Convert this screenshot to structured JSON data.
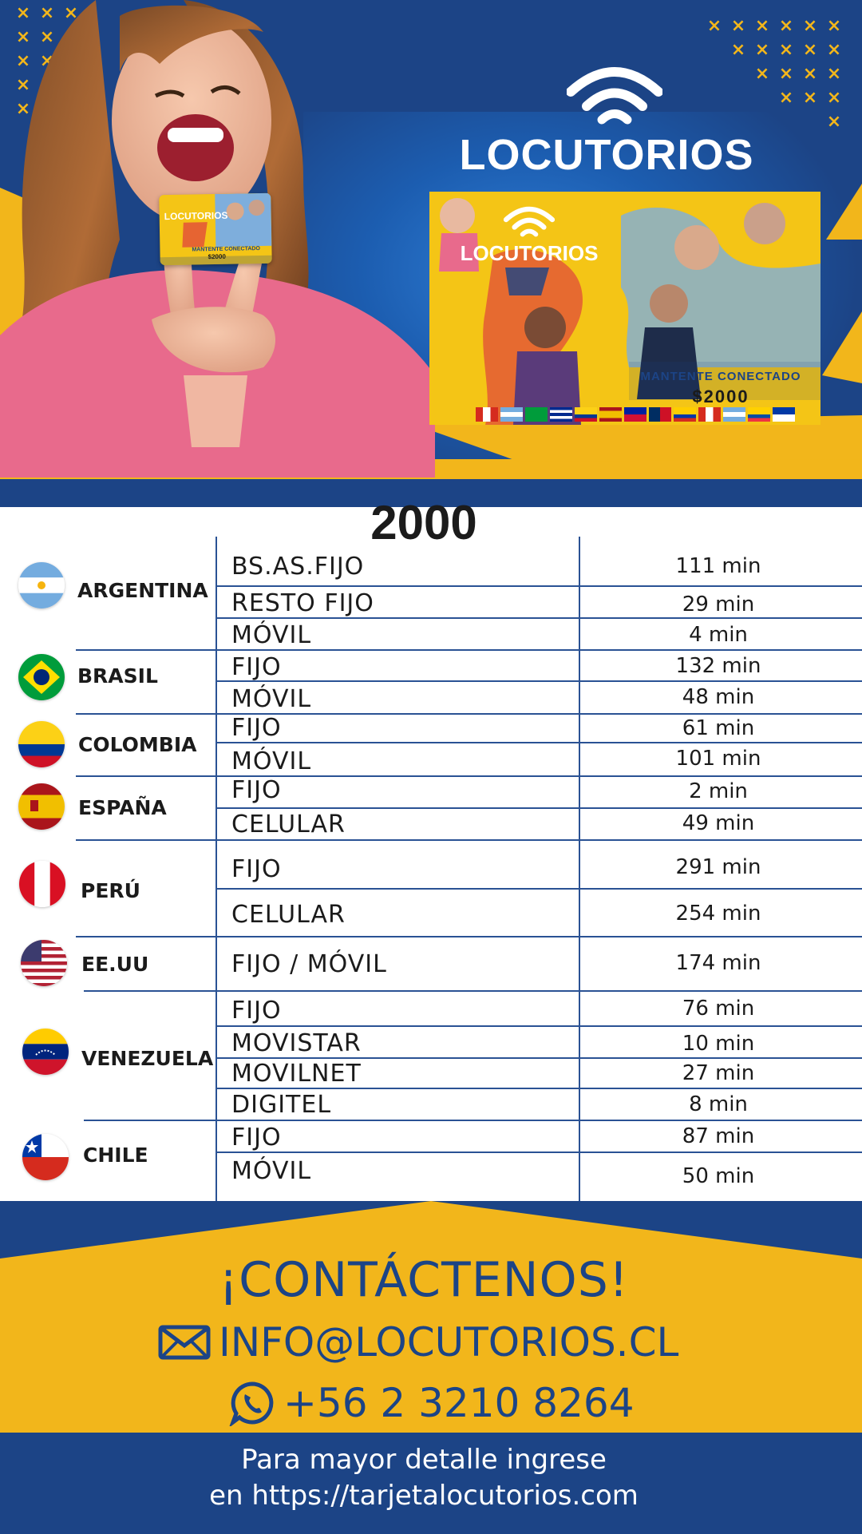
{
  "brand": {
    "name": "LOCUTORIOS"
  },
  "promo_card": {
    "brand": "LOCUTORIOS",
    "tagline": "MANTENTE CONECTADO",
    "price": "$2000"
  },
  "mini_card": {
    "brand": "LOCUTORIOS",
    "tagline": "MANTENTE CONECTADO",
    "price": "$2000"
  },
  "table": {
    "title": "2000",
    "countries": [
      {
        "name": "ARGENTINA",
        "flag": "argentina-flag",
        "rates": [
          {
            "label": "BS.AS.FIJO",
            "minutes": "111 min"
          },
          {
            "label": "RESTO FIJO",
            "minutes": "29 min"
          },
          {
            "label": "MÓVIL",
            "minutes": "4 min"
          }
        ]
      },
      {
        "name": "BRASIL",
        "flag": "brazil-flag",
        "rates": [
          {
            "label": "FIJO",
            "minutes": "132 min"
          },
          {
            "label": "MÓVIL",
            "minutes": "48 min"
          }
        ]
      },
      {
        "name": "COLOMBIA",
        "flag": "colombia-flag",
        "rates": [
          {
            "label": "FIJO",
            "minutes": "61 min"
          },
          {
            "label": "MÓVIL",
            "minutes": "101 min"
          }
        ]
      },
      {
        "name": "ESPAÑA",
        "flag": "spain-flag",
        "rates": [
          {
            "label": "FIJO",
            "minutes": "2 min"
          },
          {
            "label": "CELULAR",
            "minutes": "49 min"
          }
        ]
      },
      {
        "name": "PERÚ",
        "flag": "peru-flag",
        "rates": [
          {
            "label": "FIJO",
            "minutes": "291 min"
          },
          {
            "label": "CELULAR",
            "minutes": "254 min"
          }
        ]
      },
      {
        "name": "EE.UU",
        "flag": "usa-flag",
        "rates": [
          {
            "label": "FIJO / MÓVIL",
            "minutes": "174 min"
          }
        ]
      },
      {
        "name": "VENEZUELA",
        "flag": "venezuela-flag",
        "rates": [
          {
            "label": "FIJO",
            "minutes": "76 min"
          },
          {
            "label": "MOVISTAR",
            "minutes": "10 min"
          },
          {
            "label": "MOVILNET",
            "minutes": "27 min"
          },
          {
            "label": "DIGITEL",
            "minutes": "8 min"
          }
        ]
      },
      {
        "name": "CHILE",
        "flag": "chile-flag",
        "rates": [
          {
            "label": "FIJO",
            "minutes": "87 min"
          },
          {
            "label": "MÓVIL",
            "minutes": "50 min"
          }
        ]
      }
    ]
  },
  "contact": {
    "title": "¡CONTÁCTENOS!",
    "email": "INFO@LOCUTORIOS.CL",
    "phone": "+56 2 3210 8264",
    "email_icon": "mail-icon",
    "phone_icon": "whatsapp-icon"
  },
  "footer_note": {
    "line1": "Para mayor detalle ingrese",
    "line2": "en https://tarjetalocutorios.com"
  },
  "colors": {
    "navy": "#1c4486",
    "gold": "#f2b61b",
    "line": "#2a5294"
  }
}
